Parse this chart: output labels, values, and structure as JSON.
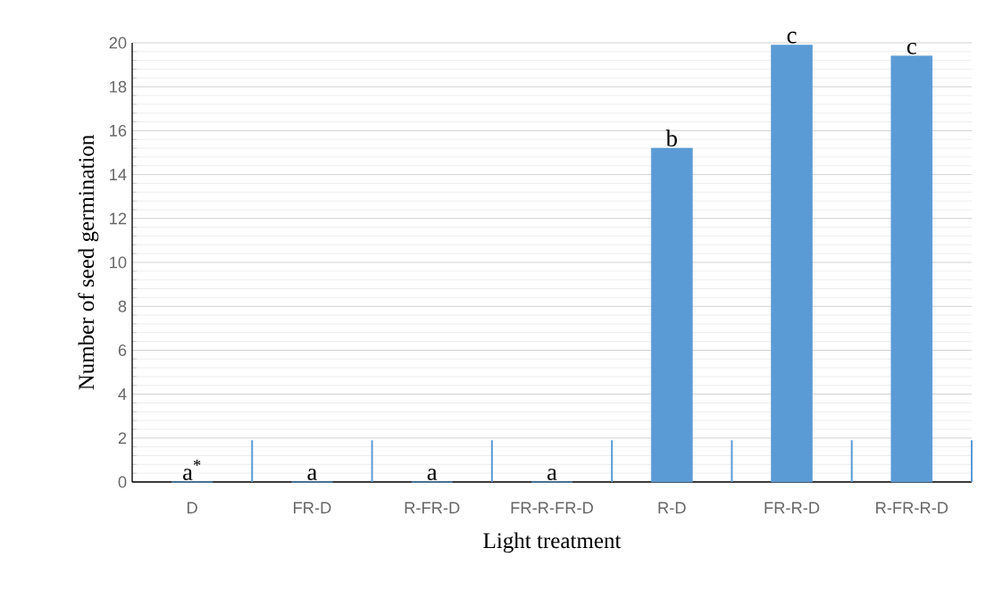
{
  "chart_data": {
    "type": "bar",
    "xlabel": "Light treatment",
    "ylabel": "Number of seed germination",
    "categories": [
      "D",
      "FR-D",
      "R-FR-D",
      "FR-R-FR-D",
      "R-D",
      "FR-R-D",
      "R-FR-R-D"
    ],
    "values": [
      0,
      0,
      0,
      0,
      15.2,
      19.9,
      19.4
    ],
    "color": "#5b9bd5",
    "ylim": [
      0,
      20
    ],
    "yticks": [
      0,
      2,
      4,
      6,
      8,
      10,
      12,
      14,
      16,
      18,
      20
    ],
    "grid": "y",
    "annotations": [
      {
        "text": "a$^{*}$",
        "x": "D",
        "y": 0
      },
      {
        "text": "a",
        "x": "FR-D",
        "y": 0
      },
      {
        "text": "a",
        "x": "R-FR-D",
        "y": 0
      },
      {
        "text": "a",
        "x": "FR-R-FR-D",
        "y": 0
      },
      {
        "text": "b",
        "x": "R-D",
        "y": 15.2
      },
      {
        "text": "c",
        "x": "FR-R-D",
        "y": 19.9
      },
      {
        "text": "c",
        "x": "R-FR-R-D",
        "y": 19.4
      }
    ]
  }
}
